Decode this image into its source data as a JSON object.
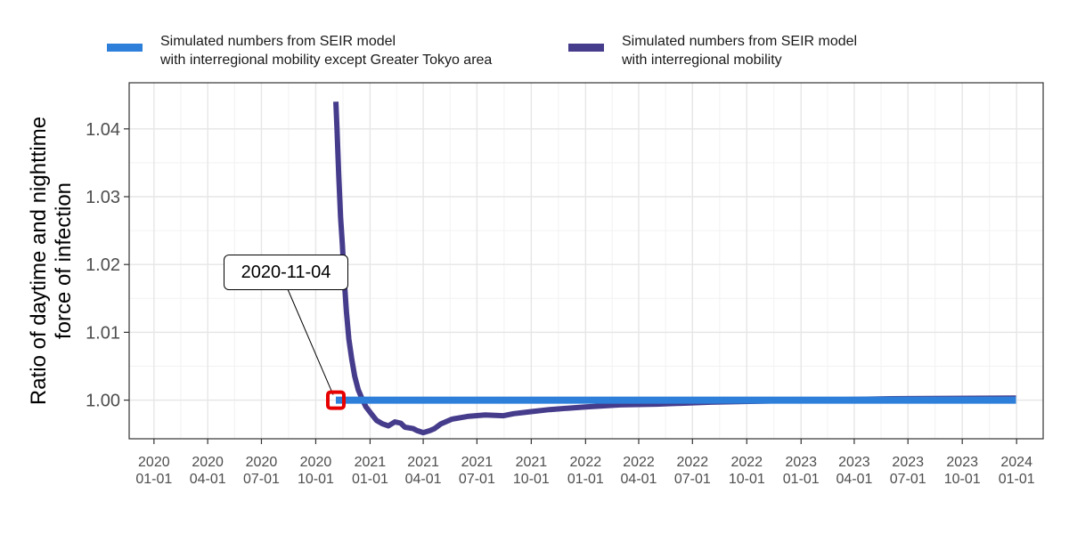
{
  "chart_data": {
    "type": "line",
    "xlabel": "",
    "ylabel": "Ratio of daytime and nighttime\nforce of infection",
    "xlim": [
      "2019-11-20",
      "2024-02-15"
    ],
    "ylim": [
      0.9943,
      1.0468
    ],
    "x_ticks": [
      {
        "date": "2020-01-01",
        "label": "2020\n01-01"
      },
      {
        "date": "2020-04-01",
        "label": "2020\n04-01"
      },
      {
        "date": "2020-07-01",
        "label": "2020\n07-01"
      },
      {
        "date": "2020-10-01",
        "label": "2020\n10-01"
      },
      {
        "date": "2021-01-01",
        "label": "2021\n01-01"
      },
      {
        "date": "2021-04-01",
        "label": "2021\n04-01"
      },
      {
        "date": "2021-07-01",
        "label": "2021\n07-01"
      },
      {
        "date": "2021-10-01",
        "label": "2021\n10-01"
      },
      {
        "date": "2022-01-01",
        "label": "2022\n01-01"
      },
      {
        "date": "2022-04-01",
        "label": "2022\n04-01"
      },
      {
        "date": "2022-07-01",
        "label": "2022\n07-01"
      },
      {
        "date": "2022-10-01",
        "label": "2022\n10-01"
      },
      {
        "date": "2023-01-01",
        "label": "2023\n01-01"
      },
      {
        "date": "2023-04-01",
        "label": "2023\n04-01"
      },
      {
        "date": "2023-07-01",
        "label": "2023\n07-01"
      },
      {
        "date": "2023-10-01",
        "label": "2023\n10-01"
      },
      {
        "date": "2024-01-01",
        "label": "2024\n01-01"
      }
    ],
    "y_ticks": [
      1.0,
      1.01,
      1.02,
      1.03,
      1.04
    ],
    "y_tick_labels": [
      "1.00",
      "1.01",
      "1.02",
      "1.03",
      "1.04"
    ],
    "grid": true,
    "legend_position": "top",
    "series": [
      {
        "name": "Simulated numbers from SEIR model\nwith interregional mobility except Greater Tokyo area",
        "color": "#2e7fd9",
        "x": [
          "2020-11-04",
          "2023-12-31"
        ],
        "y": [
          1.0,
          1.0
        ]
      },
      {
        "name": "Simulated numbers from SEIR model\nwith interregional mobility",
        "color": "#463c8c",
        "x": [
          "2020-11-04",
          "2020-11-06",
          "2020-11-09",
          "2020-11-12",
          "2020-11-15",
          "2020-11-18",
          "2020-11-22",
          "2020-11-26",
          "2020-12-01",
          "2020-12-06",
          "2020-12-12",
          "2020-12-18",
          "2020-12-25",
          "2021-01-03",
          "2021-01-12",
          "2021-01-22",
          "2021-02-01",
          "2021-02-12",
          "2021-02-22",
          "2021-03-01",
          "2021-03-15",
          "2021-03-22",
          "2021-04-01",
          "2021-04-12",
          "2021-04-20",
          "2021-05-01",
          "2021-05-20",
          "2021-06-15",
          "2021-07-15",
          "2021-08-15",
          "2021-09-01",
          "2021-10-01",
          "2021-11-01",
          "2021-12-01",
          "2022-01-01",
          "2022-03-01",
          "2022-05-01",
          "2022-08-01",
          "2022-12-01",
          "2023-06-01",
          "2023-12-31"
        ],
        "y": [
          1.044,
          1.04,
          1.033,
          1.027,
          1.023,
          1.018,
          1.013,
          1.009,
          1.006,
          1.0035,
          1.0015,
          1.0003,
          0.999,
          0.998,
          0.997,
          0.9965,
          0.9962,
          0.9968,
          0.9966,
          0.996,
          0.9958,
          0.9955,
          0.9952,
          0.9955,
          0.9958,
          0.9965,
          0.9972,
          0.9976,
          0.9978,
          0.9977,
          0.998,
          0.9983,
          0.9986,
          0.9988,
          0.999,
          0.9993,
          0.9994,
          0.9997,
          0.9999,
          1.0002,
          1.0003
        ]
      }
    ],
    "annotation": {
      "label": "2020-11-04",
      "x": "2020-11-04",
      "y": 1.0,
      "marker_color": "#e60000"
    }
  }
}
